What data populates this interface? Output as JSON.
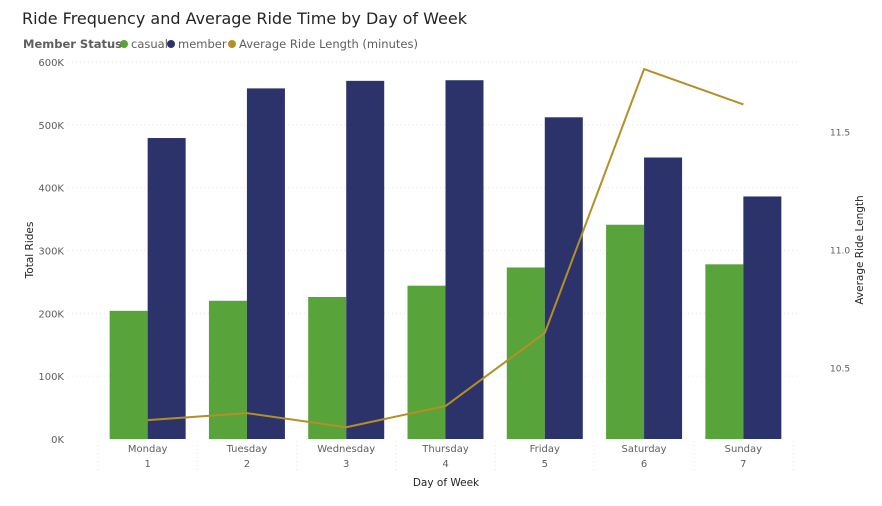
{
  "chart_data": {
    "type": "bar",
    "title": "Ride Frequency and Average Ride Time by Day of Week",
    "legend": {
      "heading": "Member Status",
      "placement": "top-left"
    },
    "categories": [
      "Monday",
      "Tuesday",
      "Wednesday",
      "Thursday",
      "Friday",
      "Saturday",
      "Sunday"
    ],
    "category_numbers": [
      "1",
      "2",
      "3",
      "4",
      "5",
      "6",
      "7"
    ],
    "xlabel": "Day of Week",
    "ylabel": "Total Rides",
    "ylabel_right": "Average Ride Length",
    "ylim": [
      0,
      600000
    ],
    "yticks": [
      {
        "value": 0,
        "label": "0K"
      },
      {
        "value": 100000,
        "label": "100K"
      },
      {
        "value": 200000,
        "label": "200K"
      },
      {
        "value": 300000,
        "label": "300K"
      },
      {
        "value": 400000,
        "label": "400K"
      },
      {
        "value": 500000,
        "label": "500K"
      },
      {
        "value": 600000,
        "label": "600K"
      }
    ],
    "ylim_right": [
      10.2,
      11.8
    ],
    "yticks_right": [
      {
        "value": 10.5,
        "label": "10.5"
      },
      {
        "value": 11.0,
        "label": "11.0"
      },
      {
        "value": 11.5,
        "label": "11.5"
      }
    ],
    "grid": true,
    "series": [
      {
        "name": "casual",
        "kind": "bar",
        "color": "#58a33a",
        "values": [
          204000,
          220000,
          226000,
          244000,
          273000,
          341000,
          278000
        ]
      },
      {
        "name": "member",
        "kind": "bar",
        "color": "#2b336a",
        "values": [
          479000,
          558000,
          570000,
          571000,
          512000,
          448000,
          386000
        ]
      },
      {
        "name": "Average Ride Length (minutes)",
        "kind": "line",
        "axis": "right",
        "color": "#b38f25",
        "values": [
          10.28,
          10.31,
          10.25,
          10.34,
          10.65,
          11.77,
          11.62
        ]
      }
    ]
  }
}
